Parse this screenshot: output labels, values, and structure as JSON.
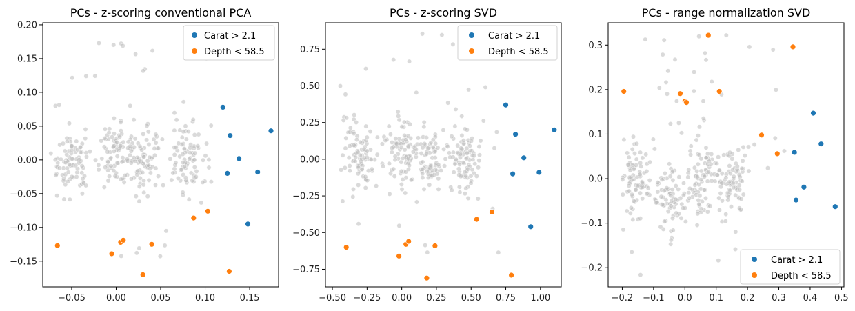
{
  "colors": {
    "background": "#bcbcbc",
    "carat": "#1f77b4",
    "depth": "#ff7f0e",
    "axis": "#000000"
  },
  "legend": {
    "carat": "Carat > 2.1",
    "depth": "Depth < 58.5"
  },
  "chart_data": [
    {
      "type": "scatter",
      "title": "PCs - z-scoring conventional PCA",
      "xlabel": "",
      "ylabel": "",
      "xlim": [
        -0.0825,
        0.1825
      ],
      "ylim": [
        -0.188,
        0.203
      ],
      "xticks": [
        -0.05,
        0.0,
        0.05,
        0.1,
        0.15
      ],
      "xtick_labels": [
        "−0.05",
        "0.00",
        "0.05",
        "0.10",
        "0.15"
      ],
      "yticks": [
        -0.15,
        -0.1,
        -0.05,
        0.0,
        0.05,
        0.1,
        0.15,
        0.2
      ],
      "ytick_labels": [
        "−0.15",
        "−0.10",
        "−0.05",
        "0.00",
        "0.05",
        "0.10",
        "0.15",
        "0.20"
      ],
      "legend_position": "top-right",
      "background_cloud": {
        "x_range": [
          -0.08,
          0.12
        ],
        "y_range": [
          -0.145,
          0.185
        ],
        "clusters": [
          [
            -0.05,
            0.0
          ],
          [
            0.0,
            0.01
          ],
          [
            0.03,
            0.0
          ],
          [
            0.08,
            0.0
          ]
        ]
      },
      "series": [
        {
          "name": "Carat > 2.1",
          "points": [
            [
              0.12,
              0.078
            ],
            [
              0.128,
              0.036
            ],
            [
              0.174,
              0.043
            ],
            [
              0.138,
              0.002
            ],
            [
              0.125,
              -0.02
            ],
            [
              0.159,
              -0.018
            ],
            [
              0.148,
              -0.095
            ]
          ]
        },
        {
          "name": "Depth < 58.5",
          "points": [
            [
              -0.066,
              -0.127
            ],
            [
              -0.005,
              -0.139
            ],
            [
              0.005,
              -0.122
            ],
            [
              0.008,
              -0.119
            ],
            [
              0.04,
              -0.125
            ],
            [
              0.03,
              -0.17
            ],
            [
              0.087,
              -0.086
            ],
            [
              0.103,
              -0.076
            ],
            [
              0.127,
              -0.165
            ]
          ]
        }
      ]
    },
    {
      "type": "scatter",
      "title": "PCs - z-scoring SVD",
      "xlabel": "",
      "ylabel": "",
      "xlim": [
        -0.55,
        1.15
      ],
      "ylim": [
        -0.87,
        0.93
      ],
      "xticks": [
        -0.5,
        -0.25,
        0.0,
        0.25,
        0.5,
        0.75,
        1.0
      ],
      "xtick_labels": [
        "−0.50",
        "−0.25",
        "0.00",
        "0.25",
        "0.50",
        "0.75",
        "1.00"
      ],
      "yticks": [
        -0.75,
        -0.5,
        -0.25,
        0.0,
        0.25,
        0.5,
        0.75
      ],
      "ytick_labels": [
        "−0.75",
        "−0.50",
        "−0.25",
        "0.00",
        "0.25",
        "0.50",
        "0.75"
      ],
      "legend_position": "top-right",
      "background_cloud": {
        "x_range": [
          -0.45,
          0.72
        ],
        "y_range": [
          -0.68,
          0.87
        ],
        "clusters": [
          [
            -0.3,
            0.0
          ],
          [
            0.0,
            0.05
          ],
          [
            0.2,
            0.0
          ],
          [
            0.45,
            0.0
          ]
        ]
      },
      "series": [
        {
          "name": "Carat > 2.1",
          "points": [
            [
              0.75,
              0.37
            ],
            [
              0.82,
              0.17
            ],
            [
              1.1,
              0.2
            ],
            [
              0.88,
              0.01
            ],
            [
              0.8,
              -0.1
            ],
            [
              0.99,
              -0.09
            ],
            [
              0.93,
              -0.46
            ]
          ]
        },
        {
          "name": "Depth < 58.5",
          "points": [
            [
              -0.4,
              -0.6
            ],
            [
              -0.02,
              -0.66
            ],
            [
              0.03,
              -0.58
            ],
            [
              0.05,
              -0.56
            ],
            [
              0.24,
              -0.59
            ],
            [
              0.18,
              -0.81
            ],
            [
              0.54,
              -0.41
            ],
            [
              0.65,
              -0.36
            ],
            [
              0.79,
              -0.79
            ]
          ]
        }
      ]
    },
    {
      "type": "scatter",
      "title": "PCs - range normalization SVD",
      "xlabel": "",
      "ylabel": "",
      "xlim": [
        -0.245,
        0.508
      ],
      "ylim": [
        -0.243,
        0.35
      ],
      "xticks": [
        -0.2,
        -0.1,
        0.0,
        0.1,
        0.2,
        0.3,
        0.4,
        0.5
      ],
      "xtick_labels": [
        "−0.2",
        "−0.1",
        "0.0",
        "0.1",
        "0.2",
        "0.3",
        "0.4",
        "0.5"
      ],
      "yticks": [
        -0.2,
        -0.1,
        0.0,
        0.1,
        0.2,
        0.3
      ],
      "ytick_labels": [
        "−0.2",
        "−0.1",
        "0.0",
        "0.1",
        "0.2",
        "0.3"
      ],
      "legend_position": "bottom-right",
      "background_cloud": {
        "x_range": [
          -0.22,
          0.32
        ],
        "y_range": [
          -0.23,
          0.325
        ],
        "clusters": [
          [
            -0.15,
            0.0
          ],
          [
            -0.05,
            -0.05
          ],
          [
            0.05,
            0.0
          ],
          [
            0.15,
            0.0
          ]
        ]
      },
      "series": [
        {
          "name": "Carat > 2.1",
          "points": [
            [
              0.41,
              0.147
            ],
            [
              0.435,
              0.078
            ],
            [
              0.35,
              0.059
            ],
            [
              0.38,
              -0.019
            ],
            [
              0.355,
              -0.048
            ],
            [
              0.48,
              -0.063
            ],
            [
              0.34,
              -0.167
            ]
          ]
        },
        {
          "name": "Depth < 58.5",
          "points": [
            [
              -0.195,
              0.196
            ],
            [
              -0.015,
              0.191
            ],
            [
              0.0,
              0.174
            ],
            [
              0.005,
              0.171
            ],
            [
              0.075,
              0.322
            ],
            [
              0.11,
              0.196
            ],
            [
              0.345,
              0.296
            ],
            [
              0.245,
              0.098
            ],
            [
              0.295,
              0.056
            ]
          ]
        }
      ]
    }
  ]
}
